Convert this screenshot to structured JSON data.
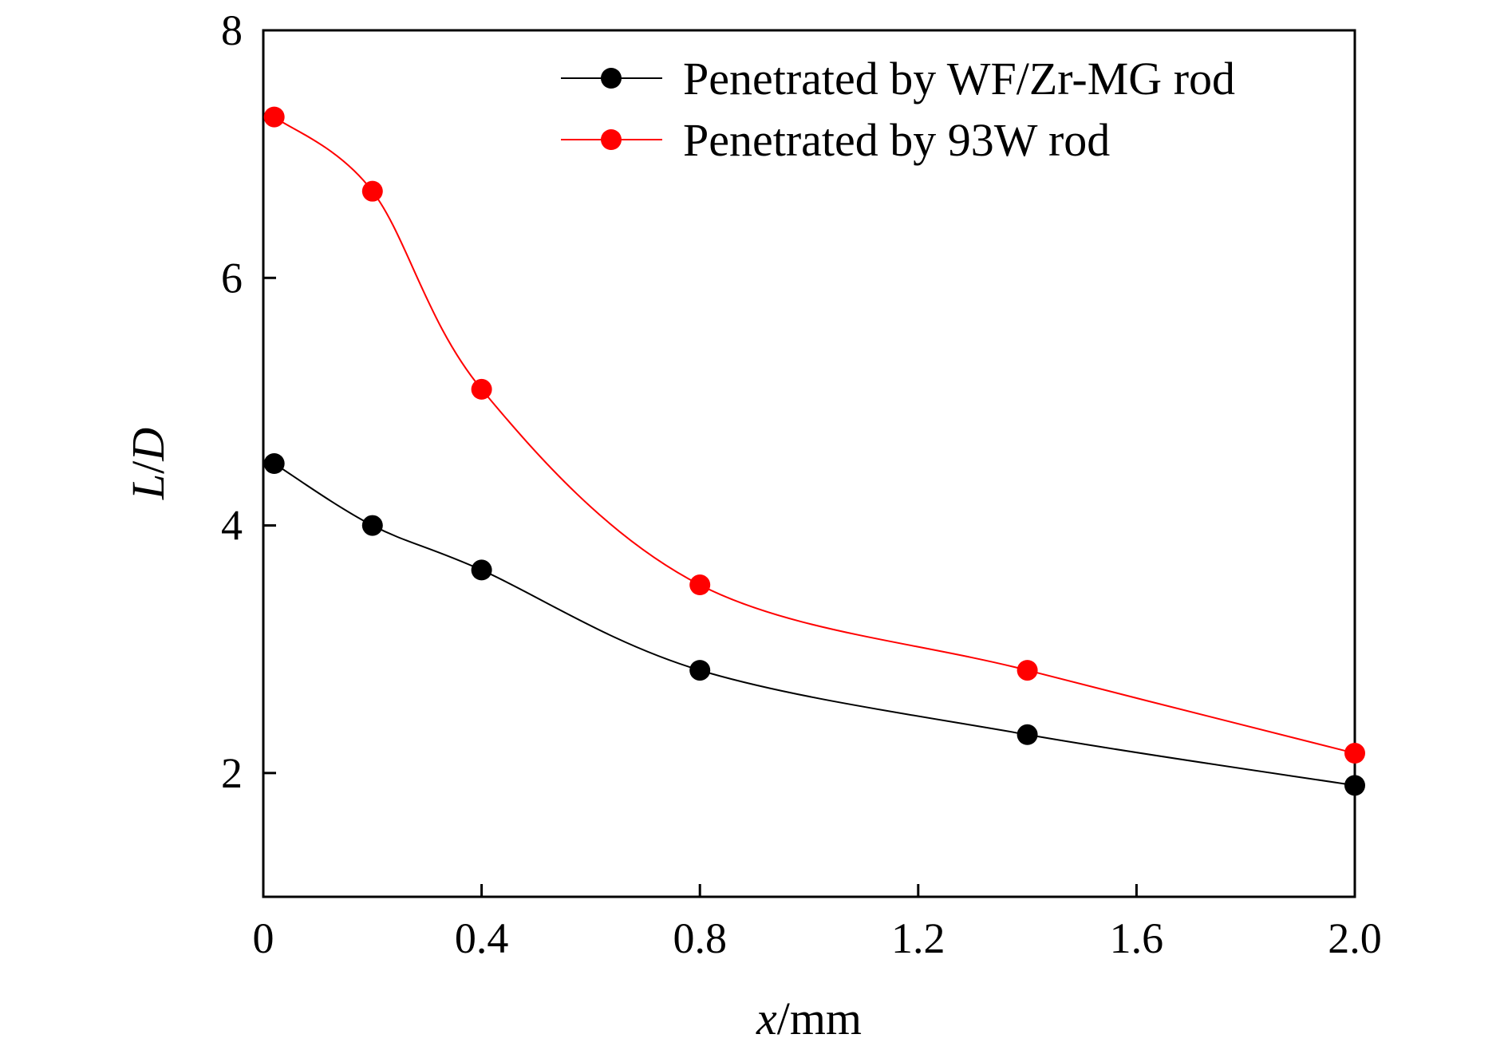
{
  "chart_data": {
    "type": "line",
    "xlabel_italic": "x",
    "xlabel_rest": "/mm",
    "ylabel_part1": "L",
    "ylabel_sep": "/",
    "ylabel_part2": "D",
    "xlim": [
      0,
      2.0
    ],
    "ylim": [
      1,
      8
    ],
    "x_ticks": [
      0,
      0.4,
      0.8,
      1.2,
      1.6,
      2.0
    ],
    "x_tick_labels": [
      "0",
      "0.4",
      "0.8",
      "1.2",
      "1.6",
      "2.0"
    ],
    "y_ticks": [
      2,
      4,
      6,
      8
    ],
    "y_tick_labels": [
      "2",
      "4",
      "6",
      "8"
    ],
    "grid": false,
    "legend_position": "top-right",
    "series": [
      {
        "name": "Penetrated by WF/Zr-MG rod",
        "color": "#000000",
        "marker": "circle",
        "x": [
          0.02,
          0.2,
          0.4,
          0.8,
          1.4,
          2.0
        ],
        "y": [
          4.5,
          4.0,
          3.64,
          2.83,
          2.31,
          1.9
        ]
      },
      {
        "name": "Penetrated by 93W rod",
        "color": "#ff0000",
        "marker": "circle",
        "x": [
          0.02,
          0.2,
          0.4,
          0.8,
          1.4,
          2.0
        ],
        "y": [
          7.3,
          6.7,
          5.1,
          3.52,
          2.83,
          2.16
        ]
      }
    ]
  }
}
